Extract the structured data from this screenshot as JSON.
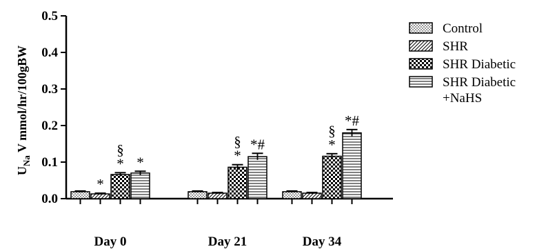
{
  "chart_data": {
    "type": "bar",
    "title": "",
    "ylabel_parts": {
      "main": "U",
      "sub": "Na",
      "rest": " V mmol/hr/100gBW"
    },
    "xlabel": "",
    "categories": [
      "Day 0",
      "Day 21",
      "Day 34"
    ],
    "ylim": [
      0,
      0.5
    ],
    "yticks": [
      0.0,
      0.1,
      0.2,
      0.3,
      0.4,
      0.5
    ],
    "ytick_labels": [
      "0.0",
      "0.1",
      "0.2",
      "0.3",
      "0.4",
      "0.5"
    ],
    "grid": false,
    "legend_position": "right",
    "series": [
      {
        "name": "Control",
        "pattern": "dots",
        "values": [
          0.019,
          0.019,
          0.019
        ],
        "errors": [
          0.002,
          0.002,
          0.002
        ],
        "annotations": [
          "",
          "",
          ""
        ]
      },
      {
        "name": "SHR",
        "pattern": "diagonal",
        "values": [
          0.013,
          0.015,
          0.015
        ],
        "errors": [
          0.002,
          0.002,
          0.002
        ],
        "annotations": [
          "*",
          "",
          ""
        ]
      },
      {
        "name": "SHR Diabetic",
        "pattern": "checker",
        "values": [
          0.066,
          0.086,
          0.116
        ],
        "errors": [
          0.005,
          0.007,
          0.007
        ],
        "annotations": [
          "§\n*",
          "§\n*",
          "§\n*"
        ]
      },
      {
        "name": "SHR Diabetic\n+NaHS",
        "pattern": "horizontal",
        "values": [
          0.07,
          0.115,
          0.18
        ],
        "errors": [
          0.005,
          0.009,
          0.009
        ],
        "annotations": [
          "*",
          "*#",
          "*#"
        ]
      }
    ]
  }
}
